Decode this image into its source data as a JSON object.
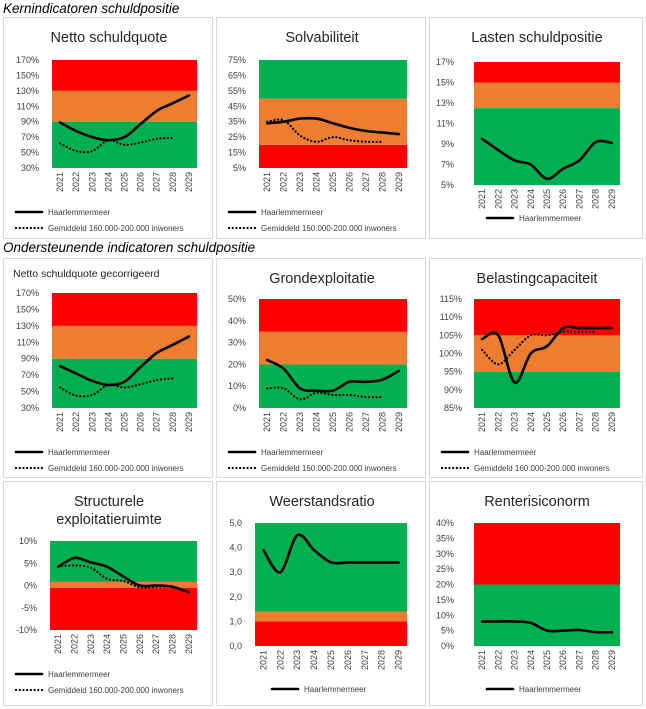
{
  "headings": {
    "section1": "Kernindicatoren schuldpositie",
    "section2": "Ondersteunende indicatoren schuldpositie"
  },
  "colors": {
    "red": "#ff0000",
    "orange": "#ed7d31",
    "green": "#00b050",
    "line": "#000000"
  },
  "chart_data": [
    {
      "id": "netto-schuldquote",
      "type": "line",
      "title": [
        "Netto schuldquote"
      ],
      "ylim": [
        30,
        170
      ],
      "yticks": [
        "30%",
        "50%",
        "70%",
        "90%",
        "110%",
        "130%",
        "150%",
        "170%"
      ],
      "bands": [
        {
          "from": 30,
          "to": 90,
          "color": "green"
        },
        {
          "from": 90,
          "to": 130,
          "color": "orange"
        },
        {
          "from": 130,
          "to": 170,
          "color": "red"
        }
      ],
      "categories": [
        "2021",
        "2022",
        "2023",
        "2024",
        "2025",
        "2026",
        "2027",
        "2028",
        "2029"
      ],
      "series": [
        {
          "name": "Haarlemmermeer",
          "style": "solid",
          "values": [
            89,
            78,
            70,
            66,
            70,
            87,
            104,
            114,
            124
          ]
        },
        {
          "name": "Gemiddeld 160.000-200.000 inwoners",
          "style": "dotted",
          "values": [
            62,
            52,
            52,
            66,
            60,
            63,
            68,
            69,
            null
          ]
        }
      ]
    },
    {
      "id": "solvabiliteit",
      "type": "line",
      "title": [
        "Solvabiliteit"
      ],
      "ylim": [
        5,
        75
      ],
      "yticks": [
        "5%",
        "15%",
        "25%",
        "35%",
        "45%",
        "55%",
        "65%",
        "75%"
      ],
      "bands": [
        {
          "from": 5,
          "to": 20,
          "color": "red"
        },
        {
          "from": 20,
          "to": 50,
          "color": "orange"
        },
        {
          "from": 50,
          "to": 75,
          "color": "green"
        }
      ],
      "categories": [
        "2021",
        "2022",
        "2023",
        "2024",
        "2025",
        "2026",
        "2027",
        "2028",
        "2029"
      ],
      "series": [
        {
          "name": "Haarlemmermeer",
          "style": "solid",
          "values": [
            34,
            35,
            37,
            37,
            34,
            31,
            29,
            28,
            27
          ]
        },
        {
          "name": "Gemiddeld 160.000-200.000 inwoners",
          "style": "dotted",
          "values": [
            35,
            36,
            26,
            22,
            25,
            23,
            22,
            22,
            null
          ]
        }
      ]
    },
    {
      "id": "lasten-schuldpositie",
      "type": "line",
      "title": [
        "Lasten schuldpositie"
      ],
      "ylim": [
        5,
        17
      ],
      "yticks": [
        "5%",
        "7%",
        "9%",
        "11%",
        "13%",
        "15%",
        "17%"
      ],
      "bands": [
        {
          "from": 5,
          "to": 12.5,
          "color": "green"
        },
        {
          "from": 12.5,
          "to": 15,
          "color": "orange"
        },
        {
          "from": 15,
          "to": 17.3,
          "color": "red"
        }
      ],
      "categories": [
        "2021",
        "2022",
        "2023",
        "2024",
        "2025",
        "2026",
        "2027",
        "2028",
        "2029"
      ],
      "series": [
        {
          "name": "Haarlemmermeer",
          "style": "solid",
          "values": [
            9.5,
            8.4,
            7.4,
            7.0,
            5.6,
            6.6,
            7.4,
            9.2,
            9.1
          ]
        }
      ]
    },
    {
      "id": "netto-schuldquote-gecorrigeerd",
      "type": "line",
      "title": [
        "Netto schuldquote gecorrigeerd"
      ],
      "title_small": true,
      "ylim": [
        30,
        170
      ],
      "yticks": [
        "30%",
        "50%",
        "70%",
        "90%",
        "110%",
        "130%",
        "150%",
        "170%"
      ],
      "bands": [
        {
          "from": 30,
          "to": 90,
          "color": "green"
        },
        {
          "from": 90,
          "to": 130,
          "color": "orange"
        },
        {
          "from": 130,
          "to": 170,
          "color": "red"
        }
      ],
      "categories": [
        "2021",
        "2022",
        "2023",
        "2024",
        "2025",
        "2026",
        "2027",
        "2028",
        "2029"
      ],
      "series": [
        {
          "name": "Haarlemmermeer",
          "style": "solid",
          "values": [
            81,
            72,
            63,
            58,
            62,
            80,
            97,
            107,
            117
          ]
        },
        {
          "name": "Gemiddeld 160.000-200.000 inwoners",
          "style": "dotted",
          "values": [
            55,
            45,
            46,
            58,
            55,
            59,
            64,
            66,
            null
          ]
        }
      ]
    },
    {
      "id": "grondexploitatie",
      "type": "line",
      "title": [
        "Grondexploitatie"
      ],
      "ylim": [
        0,
        50
      ],
      "yticks": [
        "0%",
        "10%",
        "20%",
        "30%",
        "40%",
        "50%"
      ],
      "bands": [
        {
          "from": 0,
          "to": 20,
          "color": "green"
        },
        {
          "from": 20,
          "to": 35,
          "color": "orange"
        },
        {
          "from": 35,
          "to": 50,
          "color": "red"
        }
      ],
      "categories": [
        "2021",
        "2022",
        "2023",
        "2024",
        "2025",
        "2026",
        "2027",
        "2028",
        "2029"
      ],
      "series": [
        {
          "name": "Haarlemmermeer",
          "style": "solid",
          "values": [
            22,
            18,
            9,
            8,
            8,
            12,
            12,
            13,
            17
          ]
        },
        {
          "name": "Gemiddeld 160.000-200.000 inwoners",
          "style": "dotted",
          "values": [
            9,
            9,
            4,
            7,
            6,
            6,
            5,
            5,
            null
          ]
        }
      ]
    },
    {
      "id": "belastingcapaciteit",
      "type": "line",
      "title": [
        "Belastingcapaciteit"
      ],
      "ylim": [
        85,
        115
      ],
      "yticks": [
        "85%",
        "90%",
        "95%",
        "100%",
        "105%",
        "110%",
        "115%"
      ],
      "bands": [
        {
          "from": 85,
          "to": 95,
          "color": "green"
        },
        {
          "from": 95,
          "to": 105,
          "color": "orange"
        },
        {
          "from": 105,
          "to": 115,
          "color": "red"
        }
      ],
      "categories": [
        "2021",
        "2022",
        "2023",
        "2024",
        "2025",
        "2026",
        "2027",
        "2028",
        "2029"
      ],
      "series": [
        {
          "name": "Haarlemmermeer",
          "style": "solid",
          "values": [
            104,
            105,
            92,
            100,
            102,
            107,
            107,
            107,
            107
          ]
        },
        {
          "name": "Gemiddeld 160.000-200.000 inwoners",
          "style": "dotted",
          "values": [
            101,
            97,
            101,
            105,
            105,
            106,
            106,
            106,
            null
          ]
        }
      ]
    },
    {
      "id": "structurele-exploitatieruimte",
      "type": "line",
      "title": [
        "Structurele",
        "exploitatieruimte"
      ],
      "ylim": [
        -10,
        10
      ],
      "yticks": [
        "-10%",
        "-5%",
        "0%",
        "5%",
        "10%"
      ],
      "bands": [
        {
          "from": -10,
          "to": -0.5,
          "color": "red"
        },
        {
          "from": -0.5,
          "to": 0.8,
          "color": "orange"
        },
        {
          "from": 0.8,
          "to": 10,
          "color": "green"
        }
      ],
      "categories": [
        "2021",
        "2022",
        "2023",
        "2024",
        "2025",
        "2026",
        "2027",
        "2028",
        "2029"
      ],
      "series": [
        {
          "name": "Haarlemmermeer",
          "style": "solid",
          "values": [
            4.2,
            6.2,
            5.2,
            4.2,
            2.0,
            0.0,
            0.0,
            -0.3,
            -1.5
          ]
        },
        {
          "name": "Gemiddeld 160.000-200.000 inwoners",
          "style": "dotted",
          "values": [
            4.3,
            4.5,
            4.0,
            1.5,
            1.0,
            -0.4,
            -0.3,
            -0.2,
            null
          ]
        }
      ]
    },
    {
      "id": "weerstandsratio",
      "type": "line",
      "title": [
        "Weerstandsratio"
      ],
      "ylim": [
        0,
        5
      ],
      "yticks": [
        "0,0",
        "1,0",
        "2,0",
        "3,0",
        "4,0",
        "5,0"
      ],
      "bands": [
        {
          "from": 0,
          "to": 1,
          "color": "red"
        },
        {
          "from": 1,
          "to": 1.4,
          "color": "orange"
        },
        {
          "from": 1.4,
          "to": 5,
          "color": "green"
        }
      ],
      "categories": [
        "2021",
        "2022",
        "2023",
        "2024",
        "2025",
        "2026",
        "2027",
        "2028",
        "2029"
      ],
      "series": [
        {
          "name": "Haarlemmermeer",
          "style": "solid",
          "values": [
            3.9,
            3.0,
            4.5,
            3.9,
            3.4,
            3.4,
            3.4,
            3.4,
            3.4
          ]
        }
      ]
    },
    {
      "id": "renterisiconorm",
      "type": "line",
      "title": [
        "Renterisiconorm"
      ],
      "ylim": [
        0,
        40
      ],
      "yticks": [
        "0%",
        "5%",
        "10%",
        "15%",
        "20%",
        "25%",
        "30%",
        "35%",
        "40%"
      ],
      "bands": [
        {
          "from": 0,
          "to": 20,
          "color": "green"
        },
        {
          "from": 20,
          "to": 40,
          "color": "red"
        }
      ],
      "categories": [
        "2021",
        "2022",
        "2023",
        "2024",
        "2025",
        "2026",
        "2027",
        "2028",
        "2029"
      ],
      "series": [
        {
          "name": "Haarlemmermeer",
          "style": "solid",
          "values": [
            8,
            8,
            8,
            7.5,
            5,
            5,
            5.2,
            4.5,
            4.5
          ]
        }
      ]
    }
  ]
}
